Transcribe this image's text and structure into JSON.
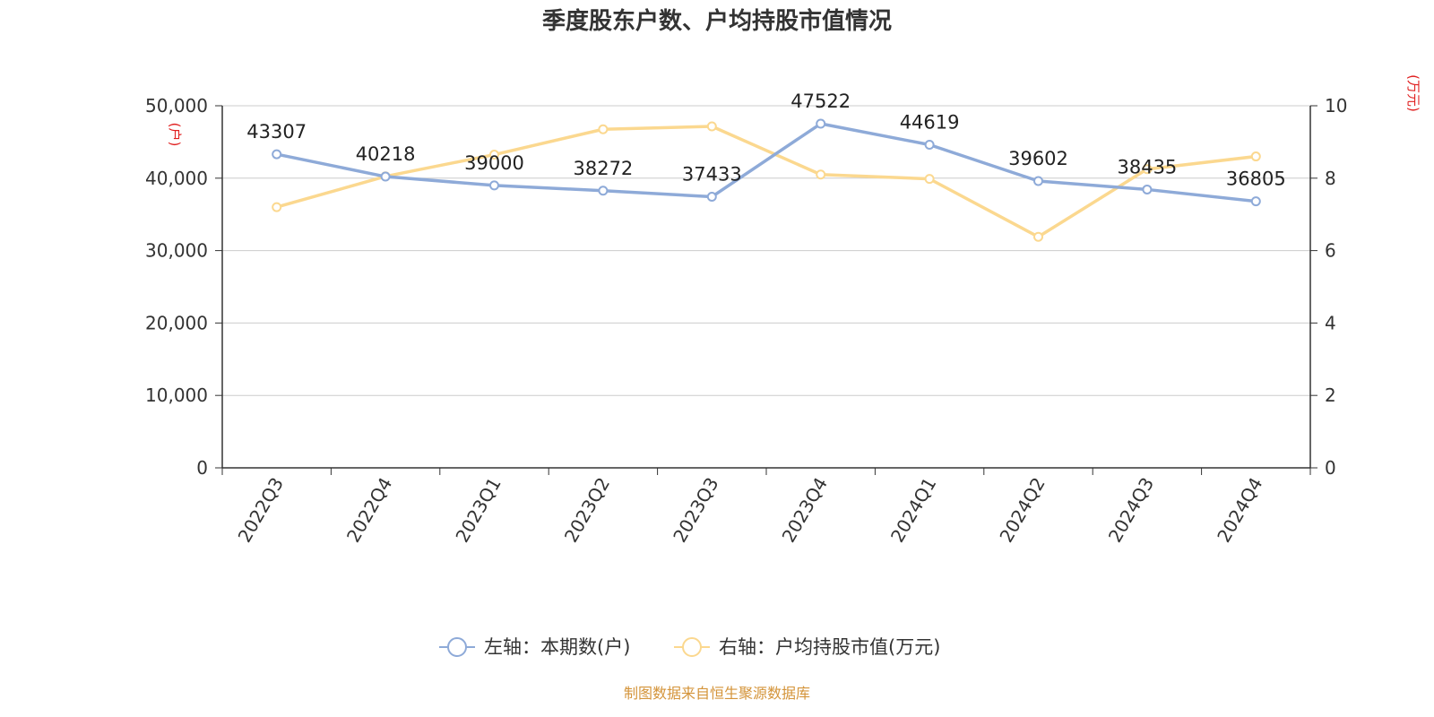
{
  "source_text": "制图数据来自恒生聚源数据库",
  "chart_data": {
    "type": "line",
    "title": "季度股东户数、户均持股市值情况",
    "categories": [
      "2022Q3",
      "2022Q4",
      "2023Q1",
      "2023Q2",
      "2023Q3",
      "2023Q4",
      "2024Q1",
      "2024Q2",
      "2024Q3",
      "2024Q4"
    ],
    "y_left": {
      "unit_label": "(户)",
      "min": 0,
      "max": 50000,
      "ticks": [
        "0",
        "10,000",
        "20,000",
        "30,000",
        "40,000",
        "50,000"
      ]
    },
    "y_right": {
      "unit_label": "(万元)",
      "min": 0,
      "max": 10,
      "ticks": [
        "0",
        "2",
        "4",
        "6",
        "8",
        "10"
      ]
    },
    "grid": true,
    "legend_position": "bottom",
    "series": [
      {
        "name": "左轴：本期数(户)",
        "axis": "left",
        "color": "#8eaad8",
        "values": [
          43307,
          40218,
          39000,
          38272,
          37433,
          47522,
          44619,
          39602,
          38435,
          36805
        ],
        "labels": [
          "43307",
          "40218",
          "39000",
          "38272",
          "37433",
          "47522",
          "44619",
          "39602",
          "38435",
          "36805"
        ]
      },
      {
        "name": "右轴：户均持股市值(万元)",
        "axis": "right",
        "color": "#fbd88f",
        "values": [
          7.2,
          8.05,
          8.65,
          9.35,
          9.43,
          8.1,
          7.98,
          6.38,
          8.25,
          8.6
        ]
      }
    ]
  }
}
